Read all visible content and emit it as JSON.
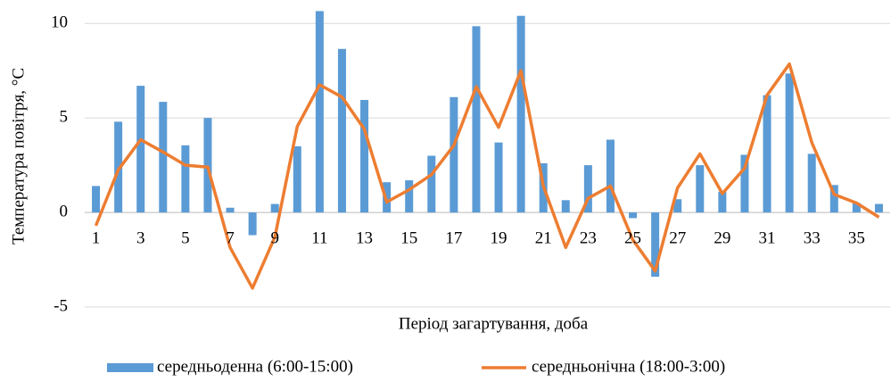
{
  "chart_data": {
    "type": "bar-line",
    "x_label": "Період загартування, доба",
    "y_label": "Температура повітря, °С",
    "categories": [
      1,
      null,
      3,
      null,
      5,
      null,
      7,
      null,
      9,
      null,
      11,
      null,
      13,
      null,
      15,
      null,
      17,
      null,
      19,
      null,
      21,
      null,
      23,
      null,
      25,
      null,
      27,
      null,
      29,
      null,
      31,
      null,
      33,
      null,
      35,
      null
    ],
    "series": [
      {
        "name": "середньоденна (6:00-15:00)",
        "type": "bar",
        "color": "#5b9bd5",
        "values": [
          1.4,
          4.8,
          6.7,
          5.85,
          3.55,
          5.0,
          0.25,
          -1.2,
          0.45,
          3.5,
          10.65,
          8.65,
          5.95,
          1.6,
          1.7,
          3.0,
          6.1,
          9.85,
          3.7,
          10.4,
          2.6,
          0.65,
          2.5,
          3.85,
          -0.3,
          -3.4,
          0.7,
          2.5,
          1.1,
          3.05,
          6.2,
          7.35,
          3.1,
          1.45,
          0.5,
          0.45
        ]
      },
      {
        "name": "середньонічна (18:00-3:00)",
        "type": "line",
        "color": "#ed7d31",
        "values": [
          -0.7,
          2.25,
          3.85,
          3.2,
          2.5,
          2.4,
          -1.85,
          -4.0,
          -1.3,
          4.55,
          6.75,
          6.1,
          4.4,
          0.55,
          1.2,
          2.0,
          3.55,
          6.65,
          4.5,
          7.5,
          1.4,
          -1.85,
          0.75,
          1.4,
          -1.45,
          -3.1,
          1.3,
          3.1,
          1.0,
          2.35,
          6.2,
          7.85,
          3.7,
          0.95,
          0.5,
          -0.25
        ]
      }
    ],
    "ylim": [
      -5,
      11
    ],
    "yticks": [
      -5,
      0,
      5,
      10
    ],
    "grid": true
  }
}
